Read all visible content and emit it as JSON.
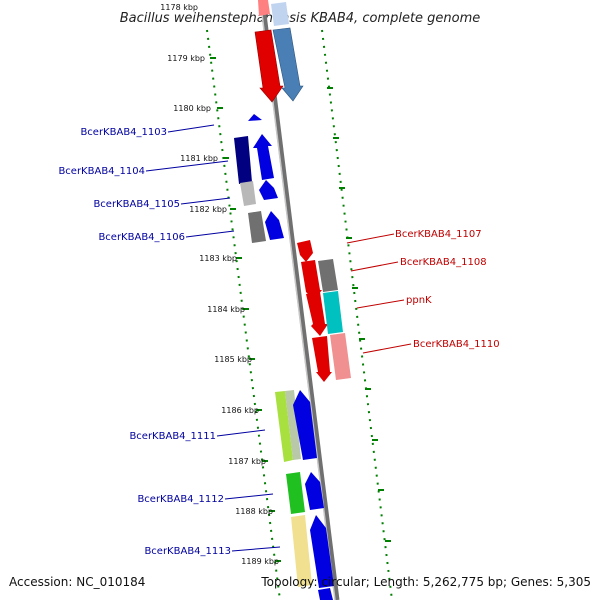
{
  "title": "Bacillus weihenstephanensis KBAB4, complete genome",
  "footer": {
    "accession": "Accession: NC_010184",
    "topology": "Topology: circular; Length: 5,262,775 bp; Genes: 5,305"
  },
  "ticks": [
    {
      "label": "1178 kbp"
    },
    {
      "label": "1179 kbp"
    },
    {
      "label": "1180 kbp"
    },
    {
      "label": "1181 kbp"
    },
    {
      "label": "1182 kbp"
    },
    {
      "label": "1183 kbp"
    },
    {
      "label": "1184 kbp"
    },
    {
      "label": "1185 kbp"
    },
    {
      "label": "1186 kbp"
    },
    {
      "label": "1187 kbp"
    },
    {
      "label": "1188 kbp"
    },
    {
      "label": "1189 kbp"
    }
  ],
  "gene_labels": {
    "left": [
      "BcerKBAB4_1103",
      "BcerKBAB4_1104",
      "BcerKBAB4_1105",
      "BcerKBAB4_1106",
      "BcerKBAB4_1111",
      "BcerKBAB4_1112",
      "BcerKBAB4_1113"
    ],
    "right": [
      "BcerKBAB4_1107",
      "BcerKBAB4_1108",
      "ppnK",
      "BcerKBAB4_1110"
    ]
  },
  "colors": {
    "backbone": "#808080",
    "tick_dots": "#008000",
    "left_label": "#0000a0",
    "right_label": "#c00000"
  }
}
